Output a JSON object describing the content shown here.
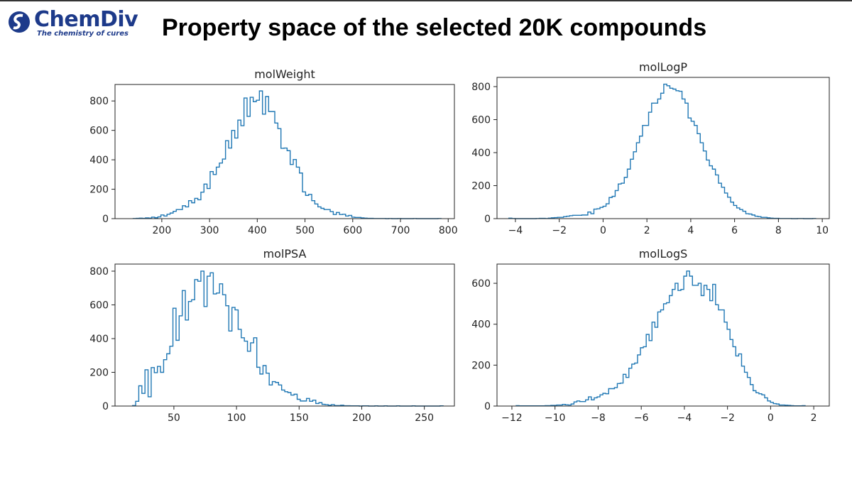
{
  "logo": {
    "name": "ChemDiv",
    "tagline": "The chemistry of cures",
    "mark": "SM",
    "color": "#1d3a8a"
  },
  "slide": {
    "title": "Property space of the selected 20K compounds"
  },
  "line_color": "#1f77b4",
  "chart_data": [
    {
      "type": "histogram-step",
      "title": "molWeight",
      "xlim": [
        102,
        813
      ],
      "ylim": [
        0,
        912
      ],
      "xticks": [
        200,
        300,
        400,
        500,
        600,
        700,
        800
      ],
      "yticks": [
        0,
        200,
        400,
        600,
        800
      ],
      "bin_range": [
        140,
        785
      ],
      "counts": [
        1,
        2,
        3,
        2,
        5,
        4,
        10,
        6,
        12,
        25,
        18,
        30,
        38,
        50,
        62,
        62,
        88,
        80,
        122,
        108,
        138,
        128,
        180,
        235,
        205,
        320,
        300,
        350,
        378,
        405,
        530,
        480,
        600,
        548,
        670,
        632,
        820,
        695,
        825,
        795,
        805,
        868,
        710,
        830,
        728,
        728,
        650,
        612,
        478,
        480,
        462,
        368,
        402,
        350,
        310,
        182,
        158,
        165,
        122,
        100,
        80,
        70,
        62,
        62,
        48,
        28,
        42,
        28,
        30,
        18,
        22,
        10,
        8,
        8,
        5,
        3,
        2,
        2,
        1,
        1,
        1,
        1,
        0,
        1,
        0,
        0,
        1,
        0,
        0,
        0,
        0,
        1,
        0,
        0,
        0,
        0,
        0,
        0,
        0,
        1
      ]
    },
    {
      "type": "histogram-step",
      "title": "molLogP",
      "xlim": [
        -4.84,
        10.32
      ],
      "ylim": [
        0,
        856
      ],
      "xticks": [
        -4,
        -2,
        0,
        2,
        4,
        6,
        8,
        10
      ],
      "yticks": [
        0,
        200,
        400,
        600,
        800
      ],
      "bin_range": [
        -4.3,
        9.7
      ],
      "counts": [
        3,
        1,
        0,
        0,
        0,
        0,
        0,
        0,
        0,
        1,
        2,
        2,
        1,
        3,
        5,
        6,
        8,
        8,
        12,
        15,
        18,
        20,
        20,
        20,
        22,
        22,
        40,
        30,
        58,
        60,
        68,
        75,
        90,
        128,
        135,
        170,
        210,
        215,
        250,
        300,
        360,
        405,
        460,
        500,
        565,
        565,
        645,
        700,
        700,
        725,
        760,
        815,
        805,
        790,
        785,
        775,
        772,
        725,
        700,
        610,
        590,
        565,
        515,
        460,
        410,
        355,
        320,
        300,
        265,
        215,
        190,
        155,
        130,
        100,
        80,
        65,
        55,
        45,
        30,
        28,
        22,
        15,
        12,
        8,
        8,
        5,
        3,
        2,
        2,
        1,
        1,
        1,
        1,
        0,
        0,
        1,
        1,
        0,
        0,
        0,
        1
      ]
    },
    {
      "type": "histogram-step",
      "title": "molPSA",
      "xlim": [
        3,
        274
      ],
      "ylim": [
        0,
        842
      ],
      "xticks": [
        50,
        100,
        150,
        200,
        250
      ],
      "yticks": [
        0,
        200,
        400,
        600,
        800
      ],
      "bin_range": [
        17,
        265
      ],
      "counts": [
        3,
        28,
        120,
        75,
        215,
        55,
        228,
        198,
        235,
        200,
        275,
        310,
        355,
        580,
        390,
        535,
        685,
        510,
        620,
        630,
        750,
        740,
        800,
        590,
        770,
        790,
        665,
        670,
        725,
        660,
        595,
        445,
        585,
        570,
        455,
        405,
        385,
        325,
        375,
        405,
        230,
        190,
        240,
        195,
        125,
        145,
        140,
        125,
        95,
        85,
        80,
        65,
        70,
        40,
        30,
        30,
        45,
        28,
        35,
        15,
        20,
        10,
        8,
        5,
        8,
        3,
        3,
        5,
        2,
        2,
        1,
        1,
        1,
        0,
        1,
        1,
        0,
        0,
        1,
        0,
        0,
        1,
        0,
        0,
        0,
        1,
        0,
        0,
        0,
        0,
        1,
        0,
        0,
        0,
        0,
        0,
        0,
        0,
        0,
        1
      ]
    },
    {
      "type": "histogram-step",
      "title": "molLogS",
      "xlim": [
        -12.69,
        2.72
      ],
      "ylim": [
        0,
        694
      ],
      "xticks": [
        -12,
        -10,
        -8,
        -6,
        -4,
        -2,
        0,
        2
      ],
      "yticks": [
        0,
        200,
        400,
        600
      ],
      "bin_range": [
        -11.8,
        1.6
      ],
      "counts": [
        2,
        1,
        1,
        1,
        1,
        1,
        1,
        1,
        1,
        1,
        2,
        2,
        3,
        3,
        5,
        5,
        8,
        6,
        5,
        10,
        20,
        25,
        22,
        22,
        30,
        45,
        30,
        40,
        45,
        55,
        62,
        60,
        85,
        85,
        90,
        110,
        112,
        155,
        140,
        185,
        205,
        210,
        250,
        285,
        290,
        350,
        320,
        410,
        385,
        460,
        470,
        500,
        505,
        540,
        570,
        600,
        565,
        570,
        635,
        660,
        635,
        590,
        590,
        600,
        540,
        590,
        570,
        515,
        595,
        495,
        470,
        470,
        410,
        375,
        325,
        290,
        245,
        255,
        195,
        165,
        140,
        105,
        75,
        65,
        60,
        55,
        40,
        25,
        18,
        12,
        10,
        5,
        5,
        4,
        3,
        2,
        1,
        1,
        1,
        2
      ]
    }
  ]
}
